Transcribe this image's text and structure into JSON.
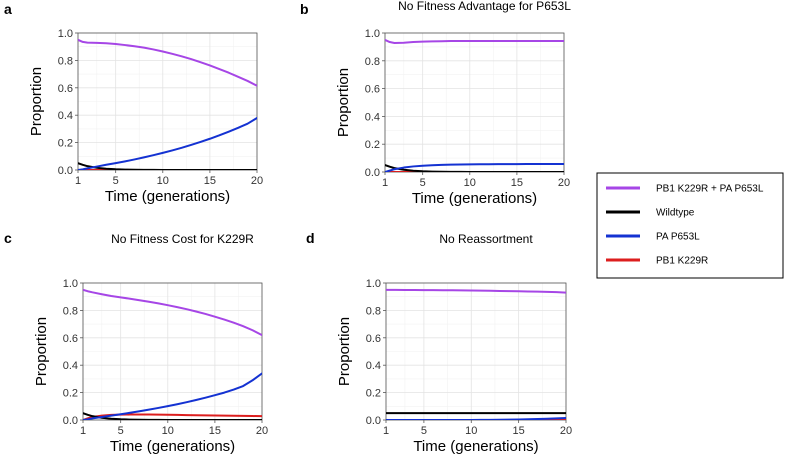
{
  "legend": {
    "entries": [
      {
        "label": "PB1 K229R + PA P653L",
        "color": "#a646e6"
      },
      {
        "label": "Wildtype",
        "color": "#000000"
      },
      {
        "label": "PA P653L",
        "color": "#1432d2"
      },
      {
        "label": "PB1 K229R",
        "color": "#dc1e1e"
      }
    ]
  },
  "chart_data": [
    {
      "type": "line",
      "panel": "a",
      "title": "",
      "xlabel": "Time (generations)",
      "ylabel": "Proportion",
      "xlim": [
        1,
        20
      ],
      "ylim": [
        0,
        1
      ],
      "xticks": [
        1,
        5,
        10,
        15,
        20
      ],
      "yticks": [
        0.0,
        0.2,
        0.4,
        0.6,
        0.8,
        1.0
      ],
      "x": [
        1,
        1.5,
        2,
        3,
        4,
        5,
        6,
        7,
        8,
        9,
        10,
        11,
        12,
        13,
        14,
        15,
        16,
        17,
        18,
        19,
        20
      ],
      "series": [
        {
          "name": "PB1 K229R + PA P653L",
          "color": "#a646e6",
          "values": [
            0.95,
            0.935,
            0.93,
            0.928,
            0.925,
            0.92,
            0.912,
            0.903,
            0.893,
            0.88,
            0.865,
            0.848,
            0.83,
            0.81,
            0.787,
            0.763,
            0.737,
            0.71,
            0.68,
            0.65,
            0.615
          ]
        },
        {
          "name": "Wildtype",
          "color": "#000000",
          "values": [
            0.05,
            0.038,
            0.028,
            0.016,
            0.009,
            0.005,
            0.003,
            0.002,
            0.001,
            0.001,
            0,
            0,
            0,
            0,
            0,
            0,
            0,
            0,
            0,
            0,
            0
          ]
        },
        {
          "name": "PA P653L",
          "color": "#1432d2",
          "values": [
            0.0,
            0.005,
            0.012,
            0.025,
            0.038,
            0.05,
            0.063,
            0.077,
            0.092,
            0.108,
            0.125,
            0.143,
            0.162,
            0.183,
            0.205,
            0.228,
            0.253,
            0.28,
            0.308,
            0.338,
            0.38
          ]
        },
        {
          "name": "PB1 K229R",
          "color": "#dc1e1e",
          "values": [
            0,
            0,
            0,
            0,
            0,
            0,
            0,
            0,
            0,
            0,
            0,
            0,
            0,
            0,
            0,
            0,
            0,
            0,
            0,
            0,
            0
          ]
        }
      ]
    },
    {
      "type": "line",
      "panel": "b",
      "title": "No Fitness Advantage for P653L",
      "xlabel": "Time (generations)",
      "ylabel": "Proportion",
      "xlim": [
        1,
        20
      ],
      "ylim": [
        0,
        1
      ],
      "xticks": [
        1,
        5,
        10,
        15,
        20
      ],
      "yticks": [
        0.0,
        0.2,
        0.4,
        0.6,
        0.8,
        1.0
      ],
      "x": [
        1,
        1.5,
        2,
        3,
        4,
        5,
        6,
        7,
        8,
        9,
        10,
        11,
        12,
        13,
        14,
        15,
        16,
        17,
        18,
        19,
        20
      ],
      "series": [
        {
          "name": "PB1 K229R + PA P653L",
          "color": "#a646e6",
          "values": [
            0.95,
            0.935,
            0.928,
            0.93,
            0.935,
            0.938,
            0.94,
            0.941,
            0.942,
            0.942,
            0.942,
            0.942,
            0.942,
            0.942,
            0.942,
            0.942,
            0.942,
            0.942,
            0.942,
            0.942,
            0.942
          ]
        },
        {
          "name": "Wildtype",
          "color": "#000000",
          "values": [
            0.05,
            0.038,
            0.028,
            0.016,
            0.009,
            0.005,
            0.003,
            0.002,
            0.001,
            0.001,
            0,
            0,
            0,
            0,
            0,
            0,
            0,
            0,
            0,
            0,
            0
          ]
        },
        {
          "name": "PA P653L",
          "color": "#1432d2",
          "values": [
            0.0,
            0.01,
            0.02,
            0.032,
            0.04,
            0.045,
            0.049,
            0.051,
            0.053,
            0.054,
            0.055,
            0.056,
            0.056,
            0.057,
            0.057,
            0.057,
            0.058,
            0.058,
            0.058,
            0.058,
            0.058
          ]
        },
        {
          "name": "PB1 K229R",
          "color": "#dc1e1e",
          "values": [
            0,
            0,
            0,
            0,
            0,
            0,
            0,
            0,
            0,
            0,
            0,
            0,
            0,
            0,
            0,
            0,
            0,
            0,
            0,
            0,
            0
          ]
        }
      ]
    },
    {
      "type": "line",
      "panel": "c",
      "title": "No Fitness Cost for K229R",
      "xlabel": "Time (generations)",
      "ylabel": "Proportion",
      "xlim": [
        1,
        20
      ],
      "ylim": [
        0,
        1
      ],
      "xticks": [
        1,
        5,
        10,
        15,
        20
      ],
      "yticks": [
        0.0,
        0.2,
        0.4,
        0.6,
        0.8,
        1.0
      ],
      "x": [
        1,
        1.5,
        2,
        3,
        4,
        5,
        6,
        7,
        8,
        9,
        10,
        11,
        12,
        13,
        14,
        15,
        16,
        17,
        18,
        19,
        20
      ],
      "series": [
        {
          "name": "PB1 K229R + PA P653L",
          "color": "#a646e6",
          "values": [
            0.95,
            0.94,
            0.932,
            0.918,
            0.905,
            0.895,
            0.885,
            0.874,
            0.863,
            0.851,
            0.838,
            0.824,
            0.809,
            0.792,
            0.774,
            0.754,
            0.733,
            0.71,
            0.685,
            0.655,
            0.62
          ]
        },
        {
          "name": "Wildtype",
          "color": "#000000",
          "values": [
            0.05,
            0.038,
            0.028,
            0.016,
            0.009,
            0.005,
            0.003,
            0.002,
            0.001,
            0.001,
            0,
            0,
            0,
            0,
            0,
            0,
            0,
            0,
            0,
            0,
            0
          ]
        },
        {
          "name": "PA P653L",
          "color": "#1432d2",
          "values": [
            0.0,
            0.005,
            0.012,
            0.022,
            0.032,
            0.042,
            0.053,
            0.064,
            0.076,
            0.088,
            0.101,
            0.115,
            0.13,
            0.146,
            0.163,
            0.181,
            0.2,
            0.222,
            0.248,
            0.29,
            0.34
          ]
        },
        {
          "name": "PB1 K229R",
          "color": "#dc1e1e",
          "values": [
            0.0,
            0.012,
            0.022,
            0.032,
            0.037,
            0.039,
            0.04,
            0.04,
            0.04,
            0.039,
            0.038,
            0.037,
            0.036,
            0.035,
            0.034,
            0.033,
            0.032,
            0.031,
            0.03,
            0.029,
            0.028
          ]
        }
      ]
    },
    {
      "type": "line",
      "panel": "d",
      "title": "No Reassortment",
      "xlabel": "Time (generations)",
      "ylabel": "Proportion",
      "xlim": [
        1,
        20
      ],
      "ylim": [
        0,
        1
      ],
      "xticks": [
        1,
        5,
        10,
        15,
        20
      ],
      "yticks": [
        0.0,
        0.2,
        0.4,
        0.6,
        0.8,
        1.0
      ],
      "x": [
        1,
        1.5,
        2,
        3,
        4,
        5,
        6,
        7,
        8,
        9,
        10,
        11,
        12,
        13,
        14,
        15,
        16,
        17,
        18,
        19,
        20
      ],
      "series": [
        {
          "name": "PB1 K229R + PA P653L",
          "color": "#a646e6",
          "values": [
            0.95,
            0.95,
            0.95,
            0.949,
            0.949,
            0.948,
            0.948,
            0.947,
            0.947,
            0.946,
            0.945,
            0.944,
            0.943,
            0.942,
            0.941,
            0.94,
            0.938,
            0.937,
            0.935,
            0.933,
            0.93
          ]
        },
        {
          "name": "Wildtype",
          "color": "#000000",
          "values": [
            0.05,
            0.05,
            0.05,
            0.05,
            0.05,
            0.05,
            0.05,
            0.05,
            0.05,
            0.05,
            0.05,
            0.05,
            0.05,
            0.05,
            0.05,
            0.05,
            0.05,
            0.05,
            0.05,
            0.05,
            0.05
          ]
        },
        {
          "name": "PA P653L",
          "color": "#1432d2",
          "values": [
            0.0,
            0.0,
            0.0,
            0.0,
            0.0,
            0.0,
            0.0,
            0.0,
            0.0,
            0.0,
            0.0,
            0.001,
            0.001,
            0.002,
            0.003,
            0.004,
            0.005,
            0.007,
            0.009,
            0.012,
            0.015
          ]
        },
        {
          "name": "PB1 K229R",
          "color": "#dc1e1e",
          "values": [
            0,
            0,
            0,
            0,
            0,
            0,
            0,
            0,
            0,
            0,
            0,
            0,
            0,
            0,
            0,
            0,
            0,
            0,
            0,
            0,
            0
          ]
        }
      ]
    }
  ]
}
